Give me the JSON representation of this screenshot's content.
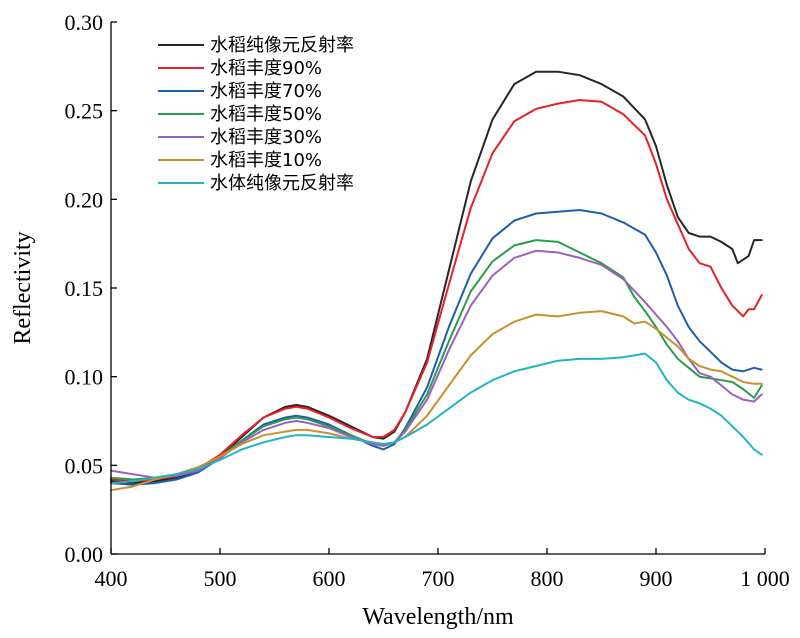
{
  "chart_data": {
    "type": "line",
    "xlabel": "Wavelength/nm",
    "ylabel": "Reflectivity",
    "xlim": [
      400,
      1000
    ],
    "ylim": [
      0,
      0.3
    ],
    "x_ticks": [
      400,
      500,
      600,
      700,
      800,
      900,
      1000
    ],
    "x_tick_labels": [
      "400",
      "500",
      "600",
      "700",
      "800",
      "900",
      "1 000"
    ],
    "y_ticks": [
      0,
      0.05,
      0.1,
      0.15,
      0.2,
      0.25,
      0.3
    ],
    "y_tick_labels": [
      "0.00",
      "0.05",
      "0.10",
      "0.15",
      "0.20",
      "0.25",
      "0.30"
    ],
    "grid": false,
    "legend_position": "top-left",
    "series": [
      {
        "name": "水稻纯像元反射率",
        "color": "#262626",
        "points": [
          [
            400,
            0.041
          ],
          [
            420,
            0.04
          ],
          [
            440,
            0.041
          ],
          [
            460,
            0.043
          ],
          [
            480,
            0.047
          ],
          [
            500,
            0.055
          ],
          [
            520,
            0.066
          ],
          [
            540,
            0.077
          ],
          [
            560,
            0.083
          ],
          [
            570,
            0.084
          ],
          [
            580,
            0.083
          ],
          [
            600,
            0.078
          ],
          [
            620,
            0.072
          ],
          [
            640,
            0.066
          ],
          [
            650,
            0.065
          ],
          [
            660,
            0.069
          ],
          [
            670,
            0.08
          ],
          [
            690,
            0.11
          ],
          [
            710,
            0.16
          ],
          [
            730,
            0.21
          ],
          [
            750,
            0.245
          ],
          [
            770,
            0.265
          ],
          [
            790,
            0.272
          ],
          [
            810,
            0.272
          ],
          [
            830,
            0.27
          ],
          [
            850,
            0.265
          ],
          [
            870,
            0.258
          ],
          [
            890,
            0.245
          ],
          [
            900,
            0.23
          ],
          [
            910,
            0.208
          ],
          [
            920,
            0.19
          ],
          [
            930,
            0.181
          ],
          [
            940,
            0.179
          ],
          [
            950,
            0.179
          ],
          [
            960,
            0.176
          ],
          [
            970,
            0.172
          ],
          [
            975,
            0.164
          ],
          [
            985,
            0.168
          ],
          [
            990,
            0.177
          ],
          [
            997,
            0.177
          ]
        ]
      },
      {
        "name": "水稻丰度90%",
        "color": "#e8202a",
        "points": [
          [
            400,
            0.042
          ],
          [
            420,
            0.041
          ],
          [
            440,
            0.042
          ],
          [
            460,
            0.044
          ],
          [
            480,
            0.048
          ],
          [
            500,
            0.056
          ],
          [
            520,
            0.067
          ],
          [
            540,
            0.077
          ],
          [
            560,
            0.082
          ],
          [
            570,
            0.083
          ],
          [
            580,
            0.082
          ],
          [
            600,
            0.077
          ],
          [
            620,
            0.071
          ],
          [
            640,
            0.066
          ],
          [
            650,
            0.066
          ],
          [
            660,
            0.07
          ],
          [
            670,
            0.08
          ],
          [
            690,
            0.108
          ],
          [
            710,
            0.152
          ],
          [
            730,
            0.195
          ],
          [
            750,
            0.226
          ],
          [
            770,
            0.244
          ],
          [
            790,
            0.251
          ],
          [
            810,
            0.254
          ],
          [
            830,
            0.256
          ],
          [
            850,
            0.255
          ],
          [
            870,
            0.248
          ],
          [
            890,
            0.236
          ],
          [
            900,
            0.22
          ],
          [
            910,
            0.2
          ],
          [
            920,
            0.186
          ],
          [
            930,
            0.172
          ],
          [
            940,
            0.164
          ],
          [
            950,
            0.162
          ],
          [
            960,
            0.15
          ],
          [
            970,
            0.14
          ],
          [
            980,
            0.134
          ],
          [
            985,
            0.138
          ],
          [
            990,
            0.138
          ],
          [
            997,
            0.146
          ]
        ]
      },
      {
        "name": "水稻丰度70%",
        "color": "#1f5fa8",
        "points": [
          [
            400,
            0.04
          ],
          [
            420,
            0.039
          ],
          [
            440,
            0.04
          ],
          [
            460,
            0.042
          ],
          [
            480,
            0.046
          ],
          [
            500,
            0.054
          ],
          [
            520,
            0.064
          ],
          [
            540,
            0.073
          ],
          [
            560,
            0.077
          ],
          [
            570,
            0.078
          ],
          [
            580,
            0.077
          ],
          [
            600,
            0.073
          ],
          [
            620,
            0.067
          ],
          [
            640,
            0.061
          ],
          [
            650,
            0.059
          ],
          [
            660,
            0.062
          ],
          [
            670,
            0.071
          ],
          [
            690,
            0.094
          ],
          [
            710,
            0.128
          ],
          [
            730,
            0.158
          ],
          [
            750,
            0.178
          ],
          [
            770,
            0.188
          ],
          [
            790,
            0.192
          ],
          [
            810,
            0.193
          ],
          [
            830,
            0.194
          ],
          [
            850,
            0.192
          ],
          [
            870,
            0.187
          ],
          [
            890,
            0.18
          ],
          [
            900,
            0.17
          ],
          [
            910,
            0.157
          ],
          [
            920,
            0.14
          ],
          [
            930,
            0.128
          ],
          [
            940,
            0.12
          ],
          [
            950,
            0.114
          ],
          [
            960,
            0.108
          ],
          [
            970,
            0.104
          ],
          [
            980,
            0.103
          ],
          [
            990,
            0.105
          ],
          [
            997,
            0.104
          ]
        ]
      },
      {
        "name": "水稻丰度50%",
        "color": "#2a9d4a",
        "points": [
          [
            400,
            0.043
          ],
          [
            420,
            0.042
          ],
          [
            440,
            0.043
          ],
          [
            460,
            0.045
          ],
          [
            480,
            0.048
          ],
          [
            500,
            0.055
          ],
          [
            520,
            0.064
          ],
          [
            540,
            0.072
          ],
          [
            560,
            0.076
          ],
          [
            570,
            0.077
          ],
          [
            580,
            0.076
          ],
          [
            600,
            0.072
          ],
          [
            620,
            0.067
          ],
          [
            640,
            0.062
          ],
          [
            650,
            0.061
          ],
          [
            660,
            0.063
          ],
          [
            670,
            0.07
          ],
          [
            690,
            0.09
          ],
          [
            710,
            0.12
          ],
          [
            730,
            0.148
          ],
          [
            750,
            0.165
          ],
          [
            770,
            0.174
          ],
          [
            790,
            0.177
          ],
          [
            810,
            0.176
          ],
          [
            830,
            0.17
          ],
          [
            850,
            0.164
          ],
          [
            870,
            0.156
          ],
          [
            880,
            0.145
          ],
          [
            890,
            0.137
          ],
          [
            900,
            0.128
          ],
          [
            910,
            0.118
          ],
          [
            920,
            0.11
          ],
          [
            930,
            0.105
          ],
          [
            940,
            0.1
          ],
          [
            950,
            0.099
          ],
          [
            960,
            0.098
          ],
          [
            970,
            0.097
          ],
          [
            980,
            0.093
          ],
          [
            990,
            0.088
          ],
          [
            997,
            0.095
          ]
        ]
      },
      {
        "name": "水稻丰度30%",
        "color": "#9b5fc0",
        "points": [
          [
            400,
            0.047
          ],
          [
            420,
            0.045
          ],
          [
            440,
            0.043
          ],
          [
            460,
            0.044
          ],
          [
            480,
            0.047
          ],
          [
            500,
            0.054
          ],
          [
            520,
            0.063
          ],
          [
            540,
            0.07
          ],
          [
            560,
            0.074
          ],
          [
            570,
            0.075
          ],
          [
            580,
            0.074
          ],
          [
            600,
            0.071
          ],
          [
            620,
            0.066
          ],
          [
            640,
            0.062
          ],
          [
            650,
            0.061
          ],
          [
            660,
            0.063
          ],
          [
            670,
            0.069
          ],
          [
            690,
            0.087
          ],
          [
            710,
            0.115
          ],
          [
            730,
            0.14
          ],
          [
            750,
            0.157
          ],
          [
            770,
            0.167
          ],
          [
            790,
            0.171
          ],
          [
            810,
            0.17
          ],
          [
            830,
            0.167
          ],
          [
            850,
            0.163
          ],
          [
            870,
            0.155
          ],
          [
            890,
            0.142
          ],
          [
            900,
            0.135
          ],
          [
            910,
            0.128
          ],
          [
            920,
            0.12
          ],
          [
            930,
            0.11
          ],
          [
            940,
            0.102
          ],
          [
            950,
            0.1
          ],
          [
            960,
            0.095
          ],
          [
            970,
            0.09
          ],
          [
            980,
            0.087
          ],
          [
            990,
            0.086
          ],
          [
            997,
            0.09
          ]
        ]
      },
      {
        "name": "水稻丰度10%",
        "color": "#c9902e",
        "points": [
          [
            400,
            0.036
          ],
          [
            420,
            0.038
          ],
          [
            440,
            0.042
          ],
          [
            460,
            0.045
          ],
          [
            480,
            0.049
          ],
          [
            500,
            0.055
          ],
          [
            520,
            0.062
          ],
          [
            540,
            0.067
          ],
          [
            560,
            0.069
          ],
          [
            570,
            0.07
          ],
          [
            580,
            0.07
          ],
          [
            600,
            0.068
          ],
          [
            620,
            0.065
          ],
          [
            640,
            0.063
          ],
          [
            650,
            0.062
          ],
          [
            660,
            0.063
          ],
          [
            670,
            0.066
          ],
          [
            690,
            0.078
          ],
          [
            710,
            0.095
          ],
          [
            730,
            0.112
          ],
          [
            750,
            0.124
          ],
          [
            770,
            0.131
          ],
          [
            790,
            0.135
          ],
          [
            810,
            0.134
          ],
          [
            830,
            0.136
          ],
          [
            850,
            0.137
          ],
          [
            870,
            0.134
          ],
          [
            880,
            0.13
          ],
          [
            890,
            0.131
          ],
          [
            900,
            0.127
          ],
          [
            910,
            0.122
          ],
          [
            920,
            0.117
          ],
          [
            930,
            0.11
          ],
          [
            940,
            0.106
          ],
          [
            950,
            0.104
          ],
          [
            960,
            0.103
          ],
          [
            970,
            0.1
          ],
          [
            980,
            0.097
          ],
          [
            990,
            0.096
          ],
          [
            997,
            0.096
          ]
        ]
      },
      {
        "name": "水体纯像元反射率",
        "color": "#22b3c4",
        "points": [
          [
            400,
            0.04
          ],
          [
            420,
            0.041
          ],
          [
            440,
            0.043
          ],
          [
            460,
            0.045
          ],
          [
            480,
            0.048
          ],
          [
            500,
            0.053
          ],
          [
            520,
            0.059
          ],
          [
            540,
            0.063
          ],
          [
            560,
            0.066
          ],
          [
            570,
            0.067
          ],
          [
            580,
            0.067
          ],
          [
            600,
            0.066
          ],
          [
            620,
            0.065
          ],
          [
            640,
            0.063
          ],
          [
            650,
            0.062
          ],
          [
            660,
            0.063
          ],
          [
            670,
            0.066
          ],
          [
            690,
            0.073
          ],
          [
            710,
            0.082
          ],
          [
            730,
            0.091
          ],
          [
            750,
            0.098
          ],
          [
            770,
            0.103
          ],
          [
            790,
            0.106
          ],
          [
            810,
            0.109
          ],
          [
            830,
            0.11
          ],
          [
            850,
            0.11
          ],
          [
            870,
            0.111
          ],
          [
            890,
            0.113
          ],
          [
            900,
            0.108
          ],
          [
            910,
            0.098
          ],
          [
            920,
            0.091
          ],
          [
            930,
            0.087
          ],
          [
            940,
            0.085
          ],
          [
            950,
            0.082
          ],
          [
            960,
            0.078
          ],
          [
            970,
            0.072
          ],
          [
            980,
            0.066
          ],
          [
            990,
            0.059
          ],
          [
            997,
            0.056
          ]
        ]
      }
    ]
  }
}
